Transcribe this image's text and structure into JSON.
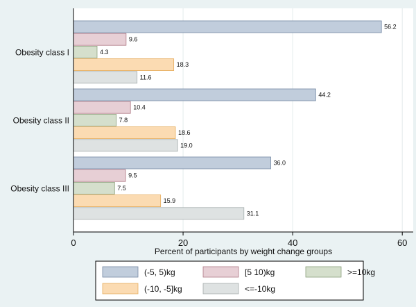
{
  "chart_data": {
    "type": "bar",
    "orientation": "horizontal",
    "xlabel": "Percent of participants by weight change groups",
    "xlim": [
      0,
      62
    ],
    "xticks": [
      0,
      20,
      40,
      60
    ],
    "grid": true,
    "legend_position": "bottom",
    "categories": [
      "Obesity class I",
      "Obesity class II",
      "Obesity class III"
    ],
    "series": [
      {
        "name": "(-5, 5)kg",
        "color": "#c1cddc",
        "stroke": "#7488a3",
        "values": [
          56.2,
          44.2,
          36.0
        ],
        "labels": [
          "56.2",
          "44.2",
          "36.0"
        ]
      },
      {
        "name": "[5 10)kg",
        "color": "#e7cfd5",
        "stroke": "#b07a86",
        "values": [
          9.6,
          10.4,
          9.5
        ],
        "labels": [
          "9.6",
          "10.4",
          "9.5"
        ]
      },
      {
        "name": ">=10kg",
        "color": "#d5dfcc",
        "stroke": "#8a9f7a",
        "values": [
          4.3,
          7.8,
          7.5
        ],
        "labels": [
          "4.3",
          "7.8",
          "7.5"
        ]
      },
      {
        "name": "(-10, -5]kg",
        "color": "#fbdbb2",
        "stroke": "#e6ad5e",
        "values": [
          18.3,
          18.6,
          15.9
        ],
        "labels": [
          "18.3",
          "18.6",
          "15.9"
        ]
      },
      {
        "name": "<=-10kg",
        "color": "#dee2e2",
        "stroke": "#a5adad",
        "values": [
          11.6,
          19.0,
          31.1
        ],
        "labels": [
          "11.6",
          "19.0",
          "31.1"
        ]
      }
    ]
  }
}
